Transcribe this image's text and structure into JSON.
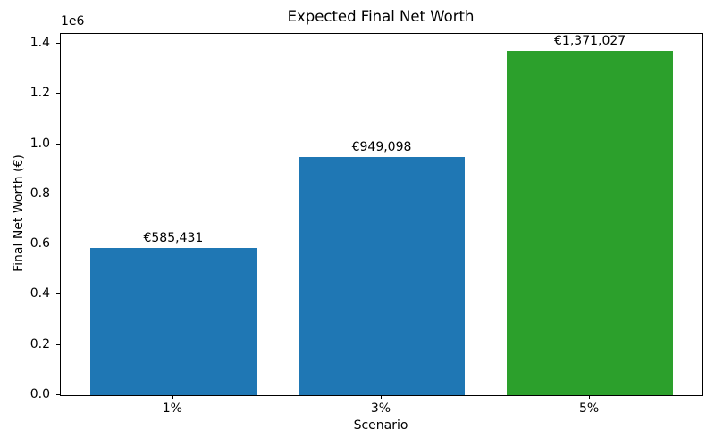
{
  "chart_data": {
    "type": "bar",
    "title": "Expected Final Net Worth",
    "xlabel": "Scenario",
    "ylabel": "Final Net Worth (€)",
    "categories": [
      "1%",
      "3%",
      "5%"
    ],
    "values": [
      585431,
      949098,
      1371027
    ],
    "value_labels": [
      "€585,431",
      "€949,098",
      "€1,371,027"
    ],
    "bar_colors": [
      "#1f77b4",
      "#1f77b4",
      "#2ca02c"
    ],
    "bar_width": 0.8,
    "ylim": [
      0,
      1439578
    ],
    "yticks": [
      0,
      200000,
      400000,
      600000,
      800000,
      1000000,
      1200000,
      1400000
    ],
    "ytick_labels": [
      "0.0",
      "0.2",
      "0.4",
      "0.6",
      "0.8",
      "1.0",
      "1.2",
      "1.4"
    ],
    "y_offset_label": "1e6",
    "grid": false,
    "legend": null,
    "text_color": "#000000",
    "spine_color": "#000000",
    "background_color": "#ffffff"
  }
}
